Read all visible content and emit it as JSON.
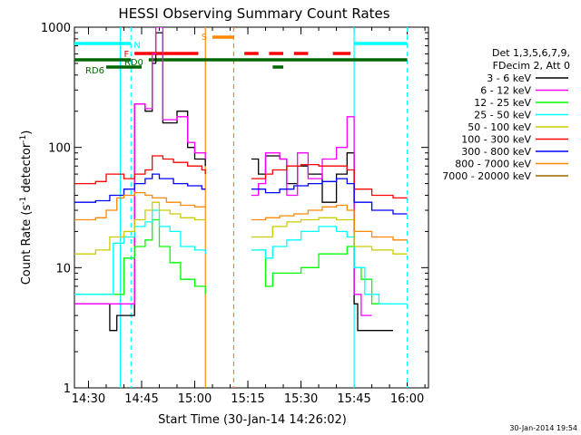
{
  "chart_data": {
    "type": "line",
    "title": "HESSI Observing Summary Count Rates",
    "xlabel": "Start Time (30-Jan-14 14:26:02)",
    "ylabel_main": "Count Rate (s",
    "ylabel_sup1": "-1",
    "ylabel_mid": " detector",
    "ylabel_sup2": "-1",
    "ylabel_end": ")",
    "x_unit": "UT time",
    "x_range": [
      "14:26:02",
      "16:06:00"
    ],
    "y_scale": "log",
    "y_range": [
      1,
      1000
    ],
    "x_ticks": [
      "14:30",
      "14:45",
      "15:00",
      "15:15",
      "15:30",
      "15:45",
      "16:00"
    ],
    "y_ticks": [
      "1",
      "10",
      "100",
      "1000"
    ],
    "legend_header": [
      "Det 1,3,5,6,7,9,",
      "FDecim 2, Att 0"
    ],
    "timestamp": "30-Jan-2014 19:54",
    "series": [
      {
        "name": "3 - 6 keV",
        "color": "#000000",
        "points": [
          [
            "14:26",
            5
          ],
          [
            "14:34",
            5
          ],
          [
            "14:36",
            3
          ],
          [
            "14:38",
            4
          ],
          [
            "14:41",
            4
          ],
          [
            "14:43",
            230
          ],
          [
            "14:46",
            200
          ],
          [
            "14:48",
            500
          ],
          [
            "14:49",
            900
          ],
          [
            "14:51",
            160
          ],
          [
            "14:55",
            200
          ],
          [
            "14:58",
            100
          ],
          [
            "15:00",
            80
          ],
          [
            "15:03",
            70
          ],
          [
            "15:16",
            80
          ],
          [
            "15:18",
            60
          ],
          [
            "15:20",
            85
          ],
          [
            "15:24",
            80
          ],
          [
            "15:26",
            50
          ],
          [
            "15:29",
            70
          ],
          [
            "15:32",
            60
          ],
          [
            "15:36",
            35
          ],
          [
            "15:40",
            60
          ],
          [
            "15:43",
            90
          ],
          [
            "15:45",
            5
          ],
          [
            "15:46",
            3
          ],
          [
            "15:50",
            3
          ],
          [
            "15:56",
            3
          ]
        ]
      },
      {
        "name": "6 - 12 keV",
        "color": "#ff00ff",
        "points": [
          [
            "14:26",
            5
          ],
          [
            "14:41",
            5
          ],
          [
            "14:43",
            230
          ],
          [
            "14:46",
            210
          ],
          [
            "14:48",
            600
          ],
          [
            "14:49",
            1000
          ],
          [
            "14:51",
            170
          ],
          [
            "14:55",
            180
          ],
          [
            "14:58",
            110
          ],
          [
            "15:00",
            90
          ],
          [
            "15:03",
            80
          ],
          [
            "15:16",
            40
          ],
          [
            "15:18",
            50
          ],
          [
            "15:20",
            90
          ],
          [
            "15:24",
            80
          ],
          [
            "15:26",
            40
          ],
          [
            "15:29",
            90
          ],
          [
            "15:32",
            55
          ],
          [
            "15:36",
            80
          ],
          [
            "15:40",
            100
          ],
          [
            "15:43",
            180
          ],
          [
            "15:45",
            6
          ],
          [
            "15:47",
            4
          ],
          [
            "15:50",
            4
          ]
        ]
      },
      {
        "name": "12 - 25 keV",
        "color": "#00ff00",
        "points": [
          [
            "14:26",
            6
          ],
          [
            "14:40",
            12
          ],
          [
            "14:43",
            15
          ],
          [
            "14:46",
            17
          ],
          [
            "14:48",
            25
          ],
          [
            "14:50",
            15
          ],
          [
            "14:53",
            11
          ],
          [
            "14:56",
            8
          ],
          [
            "15:00",
            7
          ],
          [
            "15:03",
            6
          ],
          [
            "15:16",
            14
          ],
          [
            "15:20",
            7
          ],
          [
            "15:22",
            9
          ],
          [
            "15:26",
            9
          ],
          [
            "15:30",
            10
          ],
          [
            "15:35",
            13
          ],
          [
            "15:40",
            13
          ],
          [
            "15:43",
            15
          ],
          [
            "15:45",
            10
          ],
          [
            "15:47",
            8
          ],
          [
            "15:50",
            5
          ],
          [
            "15:53",
            5
          ]
        ]
      },
      {
        "name": "25 - 50 keV",
        "color": "#00ffff",
        "points": [
          [
            "14:26",
            6
          ],
          [
            "14:30",
            6
          ],
          [
            "14:33",
            6
          ],
          [
            "14:37",
            16
          ],
          [
            "14:40",
            18
          ],
          [
            "14:43",
            22
          ],
          [
            "14:46",
            24
          ],
          [
            "14:48",
            30
          ],
          [
            "14:50",
            22
          ],
          [
            "14:53",
            20
          ],
          [
            "14:56",
            15
          ],
          [
            "15:00",
            14
          ],
          [
            "15:03",
            13
          ],
          [
            "15:16",
            14
          ],
          [
            "15:20",
            12
          ],
          [
            "15:22",
            15
          ],
          [
            "15:26",
            17
          ],
          [
            "15:30",
            20
          ],
          [
            "15:35",
            22
          ],
          [
            "15:40",
            20
          ],
          [
            "15:43",
            18
          ],
          [
            "15:45",
            10
          ],
          [
            "15:48",
            6
          ],
          [
            "15:52",
            5
          ],
          [
            "16:00",
            5
          ]
        ]
      },
      {
        "name": "50 - 100 keV",
        "color": "#cccc00",
        "points": [
          [
            "14:26",
            13
          ],
          [
            "14:32",
            14
          ],
          [
            "14:36",
            18
          ],
          [
            "14:40",
            20
          ],
          [
            "14:43",
            25
          ],
          [
            "14:46",
            30
          ],
          [
            "14:48",
            35
          ],
          [
            "14:50",
            30
          ],
          [
            "14:53",
            28
          ],
          [
            "14:56",
            26
          ],
          [
            "15:00",
            25
          ],
          [
            "15:03",
            25
          ],
          [
            "15:16",
            18
          ],
          [
            "15:20",
            18
          ],
          [
            "15:22",
            22
          ],
          [
            "15:26",
            24
          ],
          [
            "15:30",
            25
          ],
          [
            "15:35",
            26
          ],
          [
            "15:40",
            25
          ],
          [
            "15:43",
            25
          ],
          [
            "15:45",
            15
          ],
          [
            "15:50",
            14
          ],
          [
            "15:56",
            13
          ],
          [
            "16:00",
            13
          ]
        ]
      },
      {
        "name": "100 - 300 keV",
        "color": "#ff0000",
        "points": [
          [
            "14:26",
            50
          ],
          [
            "14:32",
            52
          ],
          [
            "14:35",
            60
          ],
          [
            "14:38",
            60
          ],
          [
            "14:40",
            55
          ],
          [
            "14:43",
            60
          ],
          [
            "14:46",
            65
          ],
          [
            "14:48",
            85
          ],
          [
            "14:51",
            80
          ],
          [
            "14:54",
            75
          ],
          [
            "14:58",
            70
          ],
          [
            "15:02",
            65
          ],
          [
            "15:03",
            60
          ],
          [
            "15:16",
            55
          ],
          [
            "15:20",
            60
          ],
          [
            "15:22",
            65
          ],
          [
            "15:26",
            70
          ],
          [
            "15:30",
            72
          ],
          [
            "15:35",
            70
          ],
          [
            "15:40",
            70
          ],
          [
            "15:43",
            65
          ],
          [
            "15:45",
            45
          ],
          [
            "15:50",
            40
          ],
          [
            "15:56",
            38
          ],
          [
            "16:00",
            38
          ]
        ]
      },
      {
        "name": "300 - 800 keV",
        "color": "#0000ff",
        "points": [
          [
            "14:26",
            35
          ],
          [
            "14:32",
            36
          ],
          [
            "14:36",
            40
          ],
          [
            "14:40",
            45
          ],
          [
            "14:43",
            50
          ],
          [
            "14:46",
            55
          ],
          [
            "14:48",
            60
          ],
          [
            "14:50",
            55
          ],
          [
            "14:54",
            50
          ],
          [
            "14:58",
            48
          ],
          [
            "15:02",
            45
          ],
          [
            "15:03",
            45
          ],
          [
            "15:16",
            45
          ],
          [
            "15:20",
            42
          ],
          [
            "15:24",
            45
          ],
          [
            "15:28",
            48
          ],
          [
            "15:32",
            50
          ],
          [
            "15:36",
            52
          ],
          [
            "15:40",
            55
          ],
          [
            "15:43",
            50
          ],
          [
            "15:45",
            35
          ],
          [
            "15:50",
            30
          ],
          [
            "15:56",
            28
          ],
          [
            "16:00",
            28
          ]
        ]
      },
      {
        "name": "800 - 7000 keV",
        "color": "#ff8800",
        "points": [
          [
            "14:26",
            25
          ],
          [
            "14:32",
            26
          ],
          [
            "14:35",
            30
          ],
          [
            "14:38",
            38
          ],
          [
            "14:40",
            40
          ],
          [
            "14:43",
            42
          ],
          [
            "14:46",
            40
          ],
          [
            "14:48",
            38
          ],
          [
            "14:52",
            35
          ],
          [
            "14:56",
            33
          ],
          [
            "15:00",
            32
          ],
          [
            "15:03",
            32
          ],
          [
            "15:16",
            25
          ],
          [
            "15:20",
            26
          ],
          [
            "15:24",
            27
          ],
          [
            "15:28",
            28
          ],
          [
            "15:32",
            30
          ],
          [
            "15:36",
            32
          ],
          [
            "15:40",
            33
          ],
          [
            "15:43",
            30
          ],
          [
            "15:45",
            20
          ],
          [
            "15:50",
            18
          ],
          [
            "15:56",
            17
          ],
          [
            "16:00",
            17
          ]
        ]
      },
      {
        "name": "7000 - 20000 keV",
        "color": "#996600",
        "points": []
      }
    ],
    "flags": [
      {
        "label": "N",
        "color": "#00ffff",
        "segments": [
          [
            "14:26",
            "14:42"
          ],
          [
            "15:45",
            "16:00"
          ]
        ]
      },
      {
        "label": "F",
        "color": "#ff0000",
        "segments": [
          [
            "14:43",
            "15:01"
          ],
          [
            "15:14",
            "15:18"
          ],
          [
            "15:21",
            "15:25"
          ],
          [
            "15:28",
            "15:32"
          ],
          [
            "15:39",
            "15:44"
          ]
        ]
      },
      {
        "label": "S",
        "color": "#ff8800",
        "segments": [
          [
            "15:05",
            "15:11"
          ]
        ]
      },
      {
        "label": "RD0",
        "color": "#006600",
        "segments": [
          [
            "14:26",
            "14:42"
          ],
          [
            "14:47",
            "16:00"
          ]
        ]
      },
      {
        "label": "RD6",
        "color": "#006600",
        "segments": [
          [
            "14:35",
            "14:45"
          ],
          [
            "15:22",
            "15:25"
          ]
        ]
      }
    ],
    "vlines": [
      {
        "time": "14:39",
        "color": "#00ffff",
        "style": "solid"
      },
      {
        "time": "14:42",
        "color": "#00ffff",
        "style": "dashed"
      },
      {
        "time": "15:03",
        "color": "#ff8800",
        "style": "solid"
      },
      {
        "time": "15:11",
        "color": "#ff8800",
        "style": "dashed"
      },
      {
        "time": "15:45",
        "color": "#00ffff",
        "style": "solid"
      },
      {
        "time": "16:00",
        "color": "#00ffff",
        "style": "dashed"
      }
    ]
  }
}
